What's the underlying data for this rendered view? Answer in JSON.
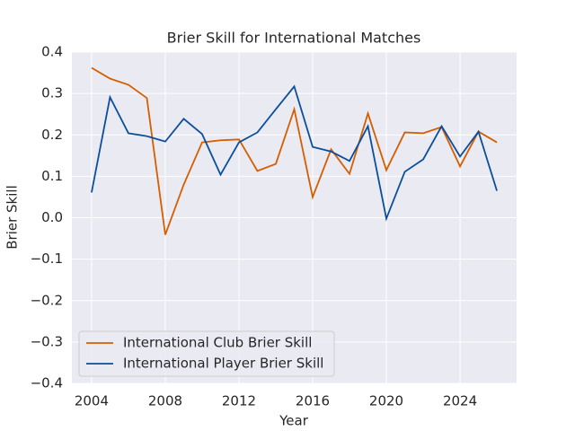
{
  "chart_data": {
    "type": "line",
    "title": "Brier Skill for International Matches",
    "x_label": "Year",
    "y_label": "Brier Skill",
    "x": [
      2004,
      2005,
      2006,
      2007,
      2008,
      2009,
      2010,
      2011,
      2012,
      2013,
      2014,
      2015,
      2016,
      2017,
      2018,
      2019,
      2020,
      2021,
      2022,
      2023,
      2024,
      2025,
      2026
    ],
    "series": [
      {
        "name": "International Club Brier Skill",
        "color": "#d55e00",
        "values": [
          0.362,
          0.336,
          0.321,
          0.289,
          -0.041,
          0.08,
          0.182,
          0.187,
          0.189,
          0.113,
          0.13,
          0.262,
          0.05,
          0.165,
          0.106,
          0.252,
          0.115,
          0.206,
          0.204,
          0.219,
          0.124,
          0.208,
          0.182
        ]
      },
      {
        "name": "International Player Brier Skill",
        "color": "#0b4f9c",
        "values": [
          0.061,
          0.291,
          0.204,
          0.197,
          0.184,
          0.239,
          0.202,
          0.104,
          0.182,
          0.206,
          0.262,
          0.317,
          0.171,
          0.16,
          0.137,
          0.221,
          -0.002,
          0.111,
          0.141,
          0.221,
          0.148,
          0.208,
          0.065
        ]
      }
    ],
    "xlim": [
      2002.93,
      2027.07
    ],
    "xticks": [
      2004,
      2008,
      2012,
      2016,
      2020,
      2024
    ],
    "ylim": [
      -0.4,
      0.4
    ],
    "yticks": [
      {
        "value": -0.4,
        "label": "−0.4"
      },
      {
        "value": -0.3,
        "label": "−0.3"
      },
      {
        "value": -0.2,
        "label": "−0.2"
      },
      {
        "value": -0.1,
        "label": "−0.1"
      },
      {
        "value": 0,
        "label": "0.0"
      },
      0.1,
      0.2,
      0.3,
      0.4
    ],
    "grid": true,
    "legend_position": "lower left"
  }
}
